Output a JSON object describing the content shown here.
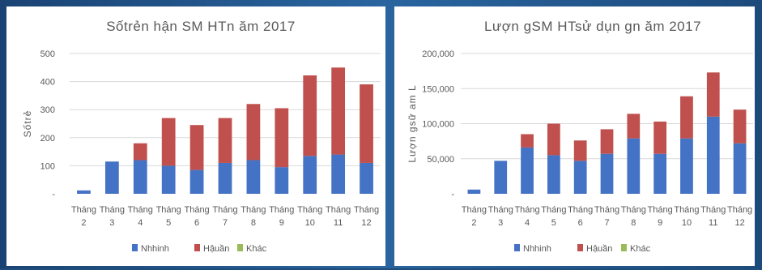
{
  "chart_data": [
    {
      "type": "bar",
      "stacked": true,
      "title": "Sốtrẻn hận SM HTn ăm 2017",
      "ylabel": "Sốtrẻ",
      "ylim": [
        0,
        500
      ],
      "yticks": [
        "-",
        "100",
        "200",
        "300",
        "400",
        "500"
      ],
      "categories": [
        [
          "Tháng",
          "2"
        ],
        [
          "Tháng",
          "3"
        ],
        [
          "Tháng",
          "4"
        ],
        [
          "Tháng",
          "5"
        ],
        [
          "Tháng",
          "6"
        ],
        [
          "Tháng",
          "7"
        ],
        [
          "Tháng",
          "8"
        ],
        [
          "Tháng",
          "9"
        ],
        [
          "Tháng",
          "10"
        ],
        [
          "Tháng",
          "11"
        ],
        [
          "Tháng",
          "12"
        ]
      ],
      "series": [
        {
          "name": "Nhhinh",
          "color": "#4472c4",
          "values": [
            12,
            115,
            120,
            100,
            85,
            110,
            120,
            95,
            135,
            140,
            110
          ]
        },
        {
          "name": "Hậuần",
          "color": "#c0504d",
          "values": [
            0,
            0,
            60,
            170,
            160,
            160,
            200,
            210,
            287,
            310,
            280
          ]
        },
        {
          "name": "Khác",
          "color": "#9bbb59",
          "values": [
            0,
            0,
            0,
            0,
            0,
            0,
            0,
            0,
            0,
            0,
            0
          ]
        }
      ],
      "legend": "bottom",
      "grid": "horizontal"
    },
    {
      "type": "bar",
      "stacked": true,
      "title": "Lượn gSM HTsử dụn gn ăm 2017",
      "ylabel": "Lượn gsữ am L",
      "ylim": [
        0,
        200000
      ],
      "yticks": [
        "-",
        "50,000",
        "100,000",
        "150,000",
        "200,000"
      ],
      "categories": [
        [
          "Tháng",
          "2"
        ],
        [
          "Tháng",
          "3"
        ],
        [
          "Tháng",
          "4"
        ],
        [
          "Tháng",
          "5"
        ],
        [
          "Tháng",
          "6"
        ],
        [
          "Tháng",
          "7"
        ],
        [
          "Tháng",
          "8"
        ],
        [
          "Tháng",
          "9"
        ],
        [
          "Tháng",
          "10"
        ],
        [
          "Tháng",
          "11"
        ],
        [
          "Tháng",
          "12"
        ]
      ],
      "series": [
        {
          "name": "Nhhinh",
          "color": "#4472c4",
          "values": [
            6000,
            47000,
            66000,
            55000,
            47000,
            57000,
            79000,
            57000,
            79000,
            110000,
            72000
          ]
        },
        {
          "name": "Hậuần",
          "color": "#c0504d",
          "values": [
            0,
            0,
            19000,
            45000,
            29000,
            35000,
            35000,
            46000,
            60000,
            63000,
            48000
          ]
        },
        {
          "name": "Khác",
          "color": "#9bbb59",
          "values": [
            0,
            0,
            0,
            0,
            0,
            0,
            0,
            0,
            0,
            0,
            0
          ]
        }
      ],
      "legend": "bottom",
      "grid": "horizontal"
    }
  ]
}
